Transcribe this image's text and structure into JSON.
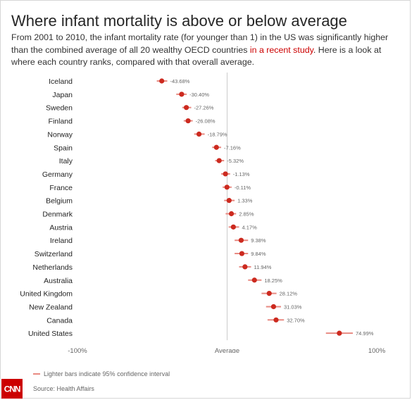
{
  "title": "Where infant mortality is above or below average",
  "subtitle": {
    "before": "From 2001 to 2010, the infant mortality rate (for younger than 1) in the US was significantly higher than the combined average of all 20 wealthy OECD countries ",
    "link": "in a recent study",
    "after": ". Here is a look at where each country ranks, compared with that overall average."
  },
  "legend_label": "Lighter bars indicate 95% confidence interval",
  "source": "Source: Health Affairs",
  "logo_text": "CNN",
  "colors": {
    "point": "#cc2a1f",
    "interval": "#e88a82",
    "axis_line": "#cccccc",
    "text": "#222222",
    "muted": "#666666"
  },
  "chart_data": {
    "type": "scatter",
    "orientation": "horizontal",
    "title": "Where infant mortality is above or below average",
    "xlim": [
      -100,
      100
    ],
    "xticks": [
      {
        "value": -100,
        "label": "-100%"
      },
      {
        "value": 0,
        "label": "Average"
      },
      {
        "value": 100,
        "label": "100%"
      }
    ],
    "reference_line": 0,
    "categories": [
      "Iceland",
      "Japan",
      "Sweden",
      "Finland",
      "Norway",
      "Spain",
      "Italy",
      "Germany",
      "France",
      "Belgium",
      "Denmark",
      "Austria",
      "Ireland",
      "Switzerland",
      "Netherlands",
      "Australia",
      "United Kingdom",
      "New Zealand",
      "Canada",
      "United States"
    ],
    "values": [
      -43.68,
      -30.4,
      -27.26,
      -26.08,
      -18.79,
      -7.16,
      -5.32,
      -1.13,
      -0.11,
      1.33,
      2.85,
      4.17,
      9.38,
      9.84,
      11.94,
      18.25,
      28.12,
      31.03,
      32.7,
      74.99
    ],
    "value_labels": [
      "-43.68%",
      "-30.40%",
      "-27.26%",
      "-26.08%",
      "-18.79%",
      "-7.16%",
      "-5.32%",
      "-1.13%",
      "-0.11%",
      "1.33%",
      "2.85%",
      "4.17%",
      "9.38%",
      "9.84%",
      "11.94%",
      "18.25%",
      "28.12%",
      "31.03%",
      "32.70%",
      "74.99%"
    ],
    "ci_low": [
      -47,
      -34,
      -30,
      -29,
      -22,
      -10,
      -8,
      -4,
      -3,
      -2,
      -1,
      1,
      5,
      5,
      8,
      14,
      23,
      26,
      27,
      66
    ],
    "ci_high": [
      -40,
      -27,
      -24,
      -23,
      -15,
      -4,
      -2,
      2,
      3,
      5,
      6,
      8,
      14,
      14,
      16,
      23,
      33,
      36,
      38,
      84
    ]
  }
}
